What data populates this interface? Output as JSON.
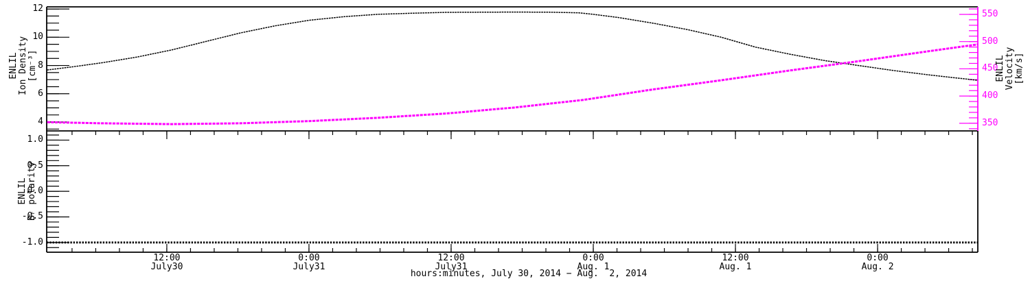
{
  "figure_background": "#ffffff",
  "colors": {
    "axis": "#000000",
    "density_series": "#000000",
    "velocity_series": "#ff00ff",
    "velocity_axis": "#ff00ff",
    "polarity_series": "#000000",
    "text": "#000000"
  },
  "chart_data": {
    "type": "line",
    "x_axis": {
      "title": "hours:minutes, July 30, 2014 − Aug.  2, 2014",
      "unit": "hours since 2014-07-30 00:00",
      "range_hours": [
        1.86,
        80.46
      ],
      "minor_step_hours": 2,
      "grid": false,
      "major_ticks": [
        {
          "hours": 12,
          "time": "12:00",
          "date": "July30"
        },
        {
          "hours": 24,
          "time": "0:00",
          "date": "July31"
        },
        {
          "hours": 36,
          "time": "12:00",
          "date": "July31"
        },
        {
          "hours": 48,
          "time": "0:00",
          "date": "Aug. 1"
        },
        {
          "hours": 60,
          "time": "12:00",
          "date": "Aug. 1"
        },
        {
          "hours": 72,
          "time": "0:00",
          "date": "Aug. 2"
        }
      ]
    },
    "panels": [
      {
        "name": "enlil-density-velocity",
        "y_left": {
          "label_lines": [
            "ENLIL",
            "Ion Density",
            "[cm⁻³]"
          ],
          "range": [
            3.37,
            12.15
          ],
          "major_ticks": [
            4,
            6,
            8,
            10,
            12
          ],
          "tick_labels": [
            "4",
            "6",
            "8",
            "10",
            "12"
          ],
          "minor_step": 0.5,
          "color": "#000000"
        },
        "y_right": {
          "label_lines": [
            "ENLIL",
            "Velocity",
            "[km/s]"
          ],
          "range": [
            336,
            563.8
          ],
          "major_ticks": [
            350,
            400,
            450,
            500,
            550
          ],
          "tick_labels": [
            "350",
            "400",
            "450",
            "500",
            "550"
          ],
          "minor_step": 10,
          "color": "#ff00ff",
          "label_color": "#000000"
        },
        "series": [
          {
            "name": "ion_density",
            "axis": "left",
            "color": "#000000",
            "style": "dotted-thin",
            "x": [
              1.9,
              4.0,
              6.6,
              9.5,
              12.4,
              15.3,
              18.2,
              21.1,
              24.0,
              26.9,
              29.8,
              32.7,
              35.6,
              38.5,
              41.4,
              44.3,
              46.8,
              48.0,
              50.1,
              53.0,
              55.9,
              58.8,
              61.7,
              64.6,
              67.5,
              70.4,
              73.3,
              76.2,
              78.3,
              80.5
            ],
            "y": [
              7.68,
              7.9,
              8.2,
              8.6,
              9.1,
              9.7,
              10.3,
              10.8,
              11.2,
              11.45,
              11.62,
              11.7,
              11.76,
              11.77,
              11.78,
              11.77,
              11.73,
              11.62,
              11.4,
              11.0,
              10.55,
              10.0,
              9.3,
              8.8,
              8.35,
              8.0,
              7.65,
              7.35,
              7.15,
              6.95
            ]
          },
          {
            "name": "velocity",
            "axis": "right",
            "color": "#ff00ff",
            "style": "plus-thick",
            "x": [
              1.9,
              6.6,
              12.4,
              18.2,
              24.0,
              29.8,
              35.6,
              41.4,
              47.2,
              53.0,
              58.8,
              64.6,
              70.4,
              76.2,
              80.5
            ],
            "y": [
              352,
              350,
              348.5,
              350,
              354,
              360,
              368,
              379,
              393,
              412,
              429,
              447,
              464,
              482,
              495
            ]
          }
        ]
      },
      {
        "name": "enlil-br-polarity",
        "y_left": {
          "label_lines": [
            "ENLIL",
            "Bᵣ polarity"
          ],
          "range": [
            -1.19,
            1.18
          ],
          "major_ticks": [
            -1.0,
            -0.5,
            0.0,
            0.5,
            1.0
          ],
          "tick_labels": [
            "-1.0",
            "-0.5",
            "0.0",
            "0.5",
            "1.0"
          ],
          "minor_step": 0.1,
          "color": "#000000"
        },
        "series": [
          {
            "name": "br_polarity",
            "axis": "left",
            "color": "#000000",
            "style": "dotted-thick",
            "x": [
              1.86,
              80.46
            ],
            "y": [
              -1.0,
              -1.0
            ]
          }
        ]
      }
    ]
  }
}
